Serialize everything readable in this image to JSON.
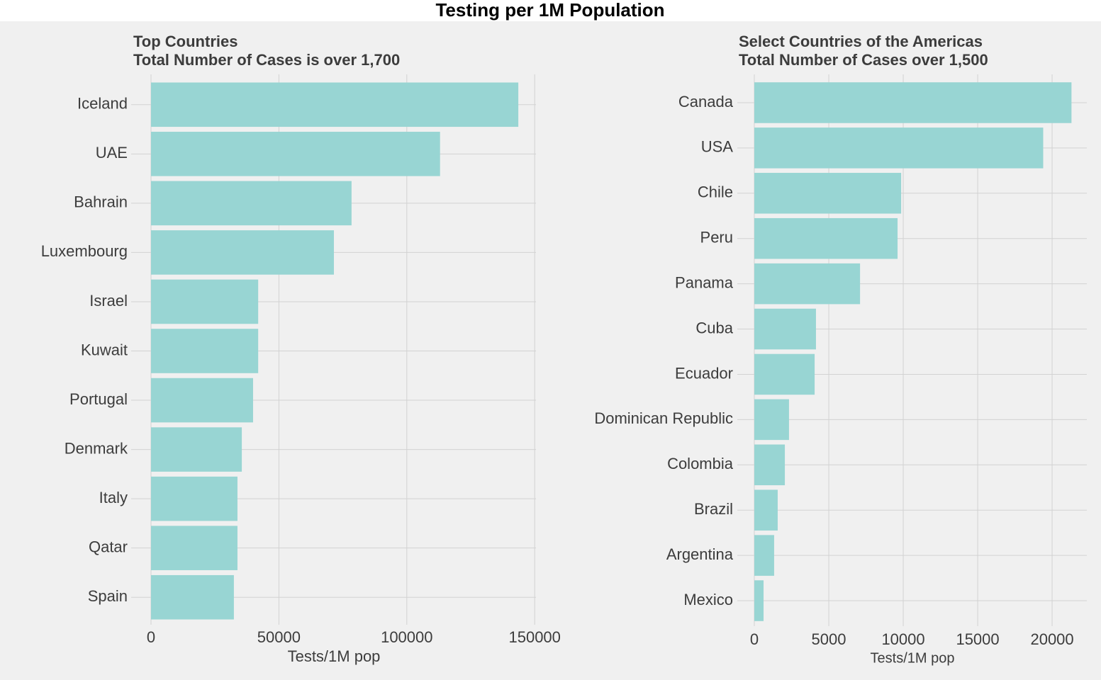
{
  "title": "Testing per 1M Population",
  "chart_data": [
    {
      "type": "bar",
      "orientation": "horizontal",
      "title": "Top Countries",
      "subtitle": "Total Number of Cases is over 1,700",
      "categories": [
        "Iceland",
        "UAE",
        "Bahrain",
        "Luxembourg",
        "Israel",
        "Kuwait",
        "Portugal",
        "Denmark",
        "Italy",
        "Qatar",
        "Spain"
      ],
      "values": [
        143600,
        113000,
        78400,
        71500,
        41900,
        41900,
        39900,
        35500,
        33800,
        33800,
        32400
      ],
      "color": "#98d5d3",
      "xlim": [
        0,
        150500
      ],
      "xticks": [
        0,
        50000,
        100000,
        150000
      ],
      "x_label": "Tests/1M pop",
      "grid": true
    },
    {
      "type": "bar",
      "orientation": "horizontal",
      "title": "Select Countries of the Americas",
      "subtitle": "Total Number of Cases over 1,500",
      "categories": [
        "Canada",
        "USA",
        "Chile",
        "Peru",
        "Panama",
        "Cuba",
        "Ecuador",
        "Dominican Republic",
        "Colombia",
        "Brazil",
        "Argentina",
        "Mexico"
      ],
      "values": [
        21300,
        19400,
        9860,
        9620,
        7100,
        4140,
        4050,
        2330,
        2050,
        1570,
        1330,
        620
      ],
      "color": "#98d5d3",
      "xlim": [
        0,
        22330
      ],
      "xticks": [
        0,
        5000,
        10000,
        15000,
        20000
      ],
      "x_label": "Tests/1M pop",
      "grid": true
    }
  ]
}
